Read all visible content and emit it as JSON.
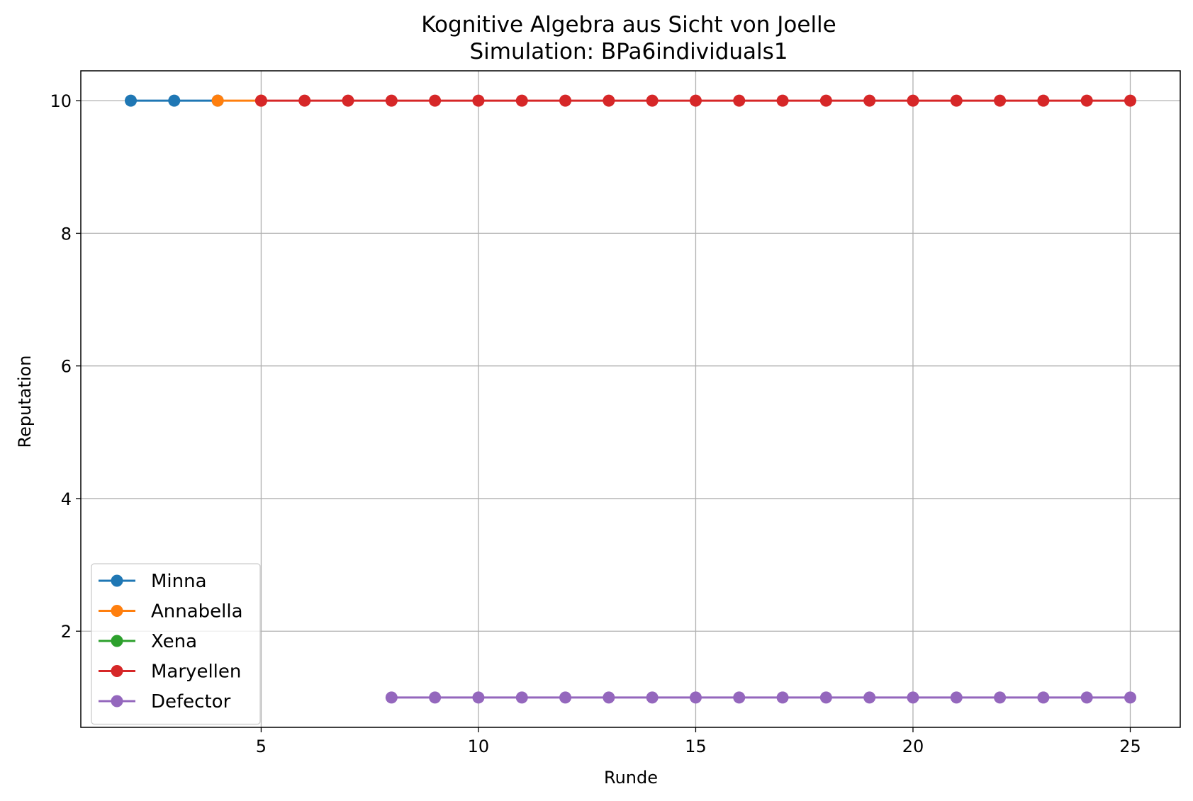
{
  "chart_data": {
    "type": "line",
    "title": "Kognitive Algebra aus Sicht von Joelle",
    "subtitle": "Simulation: BPa6individuals1",
    "xlabel": "Runde",
    "ylabel": "Reputation",
    "xlim": [
      0.85,
      26.15
    ],
    "ylim": [
      0.55,
      10.45
    ],
    "xticks": [
      5,
      10,
      15,
      20,
      25
    ],
    "yticks": [
      2,
      4,
      6,
      8,
      10
    ],
    "grid": true,
    "legend_position": "lower-left",
    "series": [
      {
        "name": "Minna",
        "color": "#1f77b4",
        "x": [
          2,
          3,
          4
        ],
        "y": [
          10,
          10,
          10
        ]
      },
      {
        "name": "Annabella",
        "color": "#ff7f0e",
        "x": [
          4,
          5
        ],
        "y": [
          10,
          10
        ]
      },
      {
        "name": "Xena",
        "color": "#2ca02c",
        "x": [],
        "y": []
      },
      {
        "name": "Maryellen",
        "color": "#d62728",
        "x": [
          5,
          6,
          7,
          8,
          9,
          10,
          11,
          12,
          13,
          14,
          15,
          16,
          17,
          18,
          19,
          20,
          21,
          22,
          23,
          24,
          25
        ],
        "y": [
          10,
          10,
          10,
          10,
          10,
          10,
          10,
          10,
          10,
          10,
          10,
          10,
          10,
          10,
          10,
          10,
          10,
          10,
          10,
          10,
          10
        ]
      },
      {
        "name": "Defector",
        "color": "#9467bd",
        "x": [
          8,
          9,
          10,
          11,
          12,
          13,
          14,
          15,
          16,
          17,
          18,
          19,
          20,
          21,
          22,
          23,
          24,
          25
        ],
        "y": [
          1,
          1,
          1,
          1,
          1,
          1,
          1,
          1,
          1,
          1,
          1,
          1,
          1,
          1,
          1,
          1,
          1,
          1
        ]
      }
    ]
  }
}
